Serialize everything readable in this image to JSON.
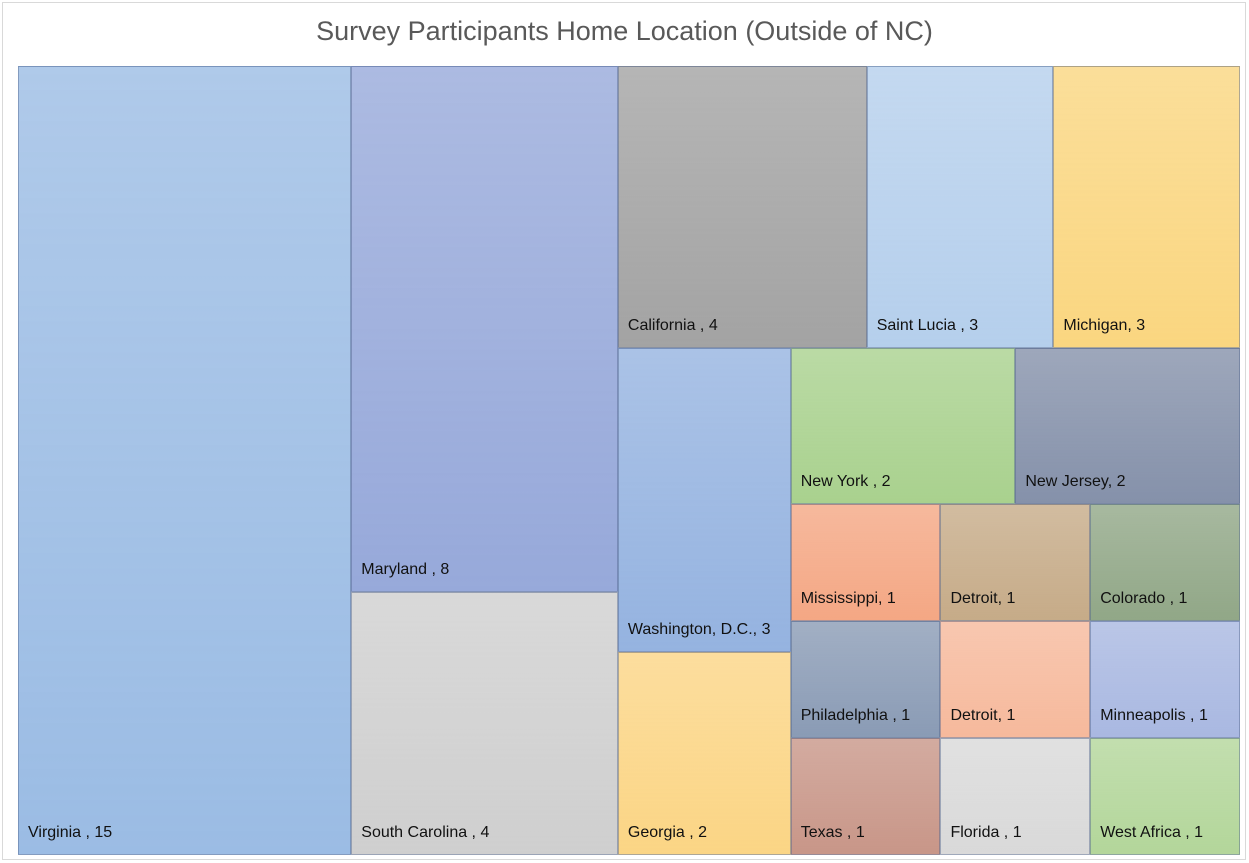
{
  "chart_data": {
    "type": "treemap",
    "title": "Survey Participants Home Location (Outside of NC)",
    "categories": [
      "Virginia , 15",
      "Maryland , 8",
      "South Carolina , 4",
      "California , 4",
      "Saint Lucia , 3",
      "Michigan, 3",
      "Washington, D.C., 3",
      "New York , 2",
      "New Jersey, 2",
      "Georgia , 2",
      "Mississippi, 1",
      "Detroit, 1",
      "Colorado , 1",
      "Philadelphia , 1",
      "Detroit, 1",
      "Minneapolis , 1",
      "Texas , 1",
      "Florida , 1",
      "West Africa , 1"
    ],
    "values": [
      15,
      8,
      4,
      4,
      3,
      3,
      3,
      2,
      2,
      2,
      1,
      1,
      1,
      1,
      1,
      1,
      1,
      1,
      1
    ],
    "colors": [
      "#9bbce4",
      "#97a9da",
      "#cfcfcf",
      "#a3a3a3",
      "#b5cfec",
      "#fad680",
      "#95b3e0",
      "#a9d18e",
      "#8591aa",
      "#fbd585",
      "#f4a784",
      "#c6ab88",
      "#91a787",
      "#8a9bb5",
      "#f6b99c",
      "#a9b8e1",
      "#c89688",
      "#d9d9d9",
      "#b3d69a"
    ]
  }
}
